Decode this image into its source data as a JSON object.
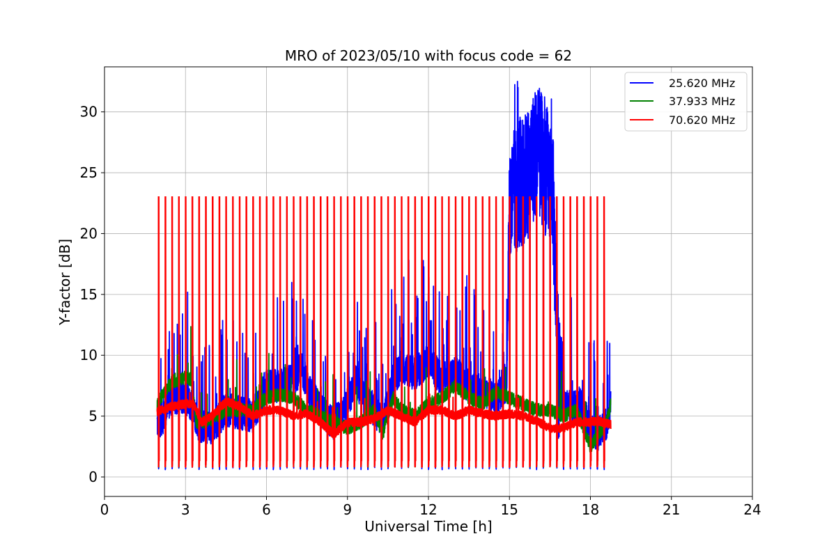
{
  "chart_data": {
    "type": "line",
    "title": "MRO of 2023/05/10 with focus code = 62",
    "xlabel": "Universal Time [h]",
    "ylabel": "Y-factor [dB]",
    "xlim": [
      0,
      24
    ],
    "ylim": [
      -1.6,
      33.7
    ],
    "xticks": [
      0,
      3,
      6,
      9,
      12,
      15,
      18,
      21,
      24
    ],
    "yticks": [
      0,
      5,
      10,
      15,
      20,
      25,
      30
    ],
    "grid": true,
    "legend_position": "top-right",
    "data_start_h": 1.95,
    "data_end_h": 18.75,
    "calibration_pulses": {
      "start_h": 2.0,
      "end_h": 18.55,
      "interval_h": 0.25,
      "peak_db": 23.0,
      "floor_db": 0.8
    },
    "series": [
      {
        "name": "25.620 MHz",
        "color": "#0000ff",
        "x": [
          1.95,
          2.2,
          2.5,
          3.0,
          3.3,
          3.5,
          4.0,
          4.5,
          5.0,
          5.5,
          6.0,
          6.5,
          7.0,
          7.3,
          7.6,
          8.0,
          8.5,
          9.0,
          9.3,
          9.6,
          10.0,
          10.3,
          10.7,
          11.0,
          11.5,
          12.0,
          12.5,
          13.0,
          13.5,
          14.0,
          14.5,
          14.9,
          15.0,
          15.3,
          15.6,
          16.0,
          16.3,
          16.6,
          16.85,
          17.0,
          17.3,
          17.6,
          18.0,
          18.3,
          18.6,
          18.75
        ],
        "values": [
          4.4,
          5.0,
          6.5,
          6.6,
          5.5,
          4.2,
          4.1,
          5.5,
          5.3,
          5.0,
          7.5,
          7.5,
          8.0,
          9.0,
          7.0,
          5.5,
          4.3,
          6.0,
          8.0,
          6.5,
          5.5,
          4.5,
          8.0,
          9.0,
          8.5,
          9.5,
          8.0,
          8.5,
          7.5,
          7.0,
          6.5,
          7.5,
          22.0,
          24.0,
          24.5,
          27.0,
          25.5,
          24.0,
          6.0,
          6.5,
          5.5,
          6.0,
          4.0,
          3.5,
          4.5,
          6.0
        ]
      },
      {
        "name": "37.933 MHz",
        "color": "#008000",
        "x": [
          1.95,
          2.2,
          2.5,
          2.8,
          3.0,
          3.2,
          3.4,
          3.7,
          4.0,
          4.5,
          5.0,
          5.5,
          6.0,
          6.5,
          7.0,
          7.5,
          8.0,
          8.5,
          9.0,
          9.5,
          10.0,
          10.3,
          10.7,
          11.0,
          11.5,
          12.0,
          12.5,
          13.0,
          13.5,
          14.0,
          14.5,
          15.0,
          15.5,
          16.0,
          16.5,
          17.0,
          17.5,
          18.0,
          18.3,
          18.6,
          18.75
        ],
        "values": [
          5.8,
          7.0,
          7.8,
          8.0,
          8.2,
          8.0,
          4.5,
          4.5,
          4.8,
          5.5,
          5.5,
          5.5,
          6.5,
          6.8,
          6.5,
          5.5,
          5.0,
          4.5,
          4.0,
          4.5,
          5.5,
          3.5,
          6.5,
          5.5,
          5.0,
          6.0,
          6.5,
          7.5,
          6.5,
          6.0,
          7.0,
          6.5,
          6.0,
          5.5,
          5.5,
          5.0,
          5.5,
          2.5,
          3.5,
          4.5,
          6.0
        ]
      },
      {
        "name": "70.620 MHz",
        "color": "#ff0000",
        "x": [
          1.95,
          2.5,
          3.0,
          3.3,
          3.6,
          4.0,
          4.5,
          5.0,
          5.5,
          6.0,
          6.5,
          7.0,
          7.5,
          8.0,
          8.5,
          9.0,
          9.5,
          10.0,
          10.5,
          11.0,
          11.5,
          12.0,
          12.5,
          13.0,
          13.5,
          14.0,
          14.5,
          15.0,
          15.5,
          16.0,
          16.5,
          17.0,
          17.5,
          18.0,
          18.3,
          18.6,
          18.75
        ],
        "values": [
          5.4,
          5.8,
          6.0,
          6.0,
          4.5,
          5.0,
          6.2,
          5.8,
          5.0,
          5.5,
          5.5,
          5.0,
          5.2,
          4.5,
          3.5,
          4.5,
          4.5,
          4.8,
          5.5,
          5.0,
          4.5,
          5.5,
          5.5,
          5.0,
          5.5,
          5.2,
          5.0,
          5.2,
          5.0,
          4.6,
          4.0,
          4.0,
          4.5,
          4.5,
          4.6,
          4.4,
          4.3
        ]
      }
    ]
  }
}
